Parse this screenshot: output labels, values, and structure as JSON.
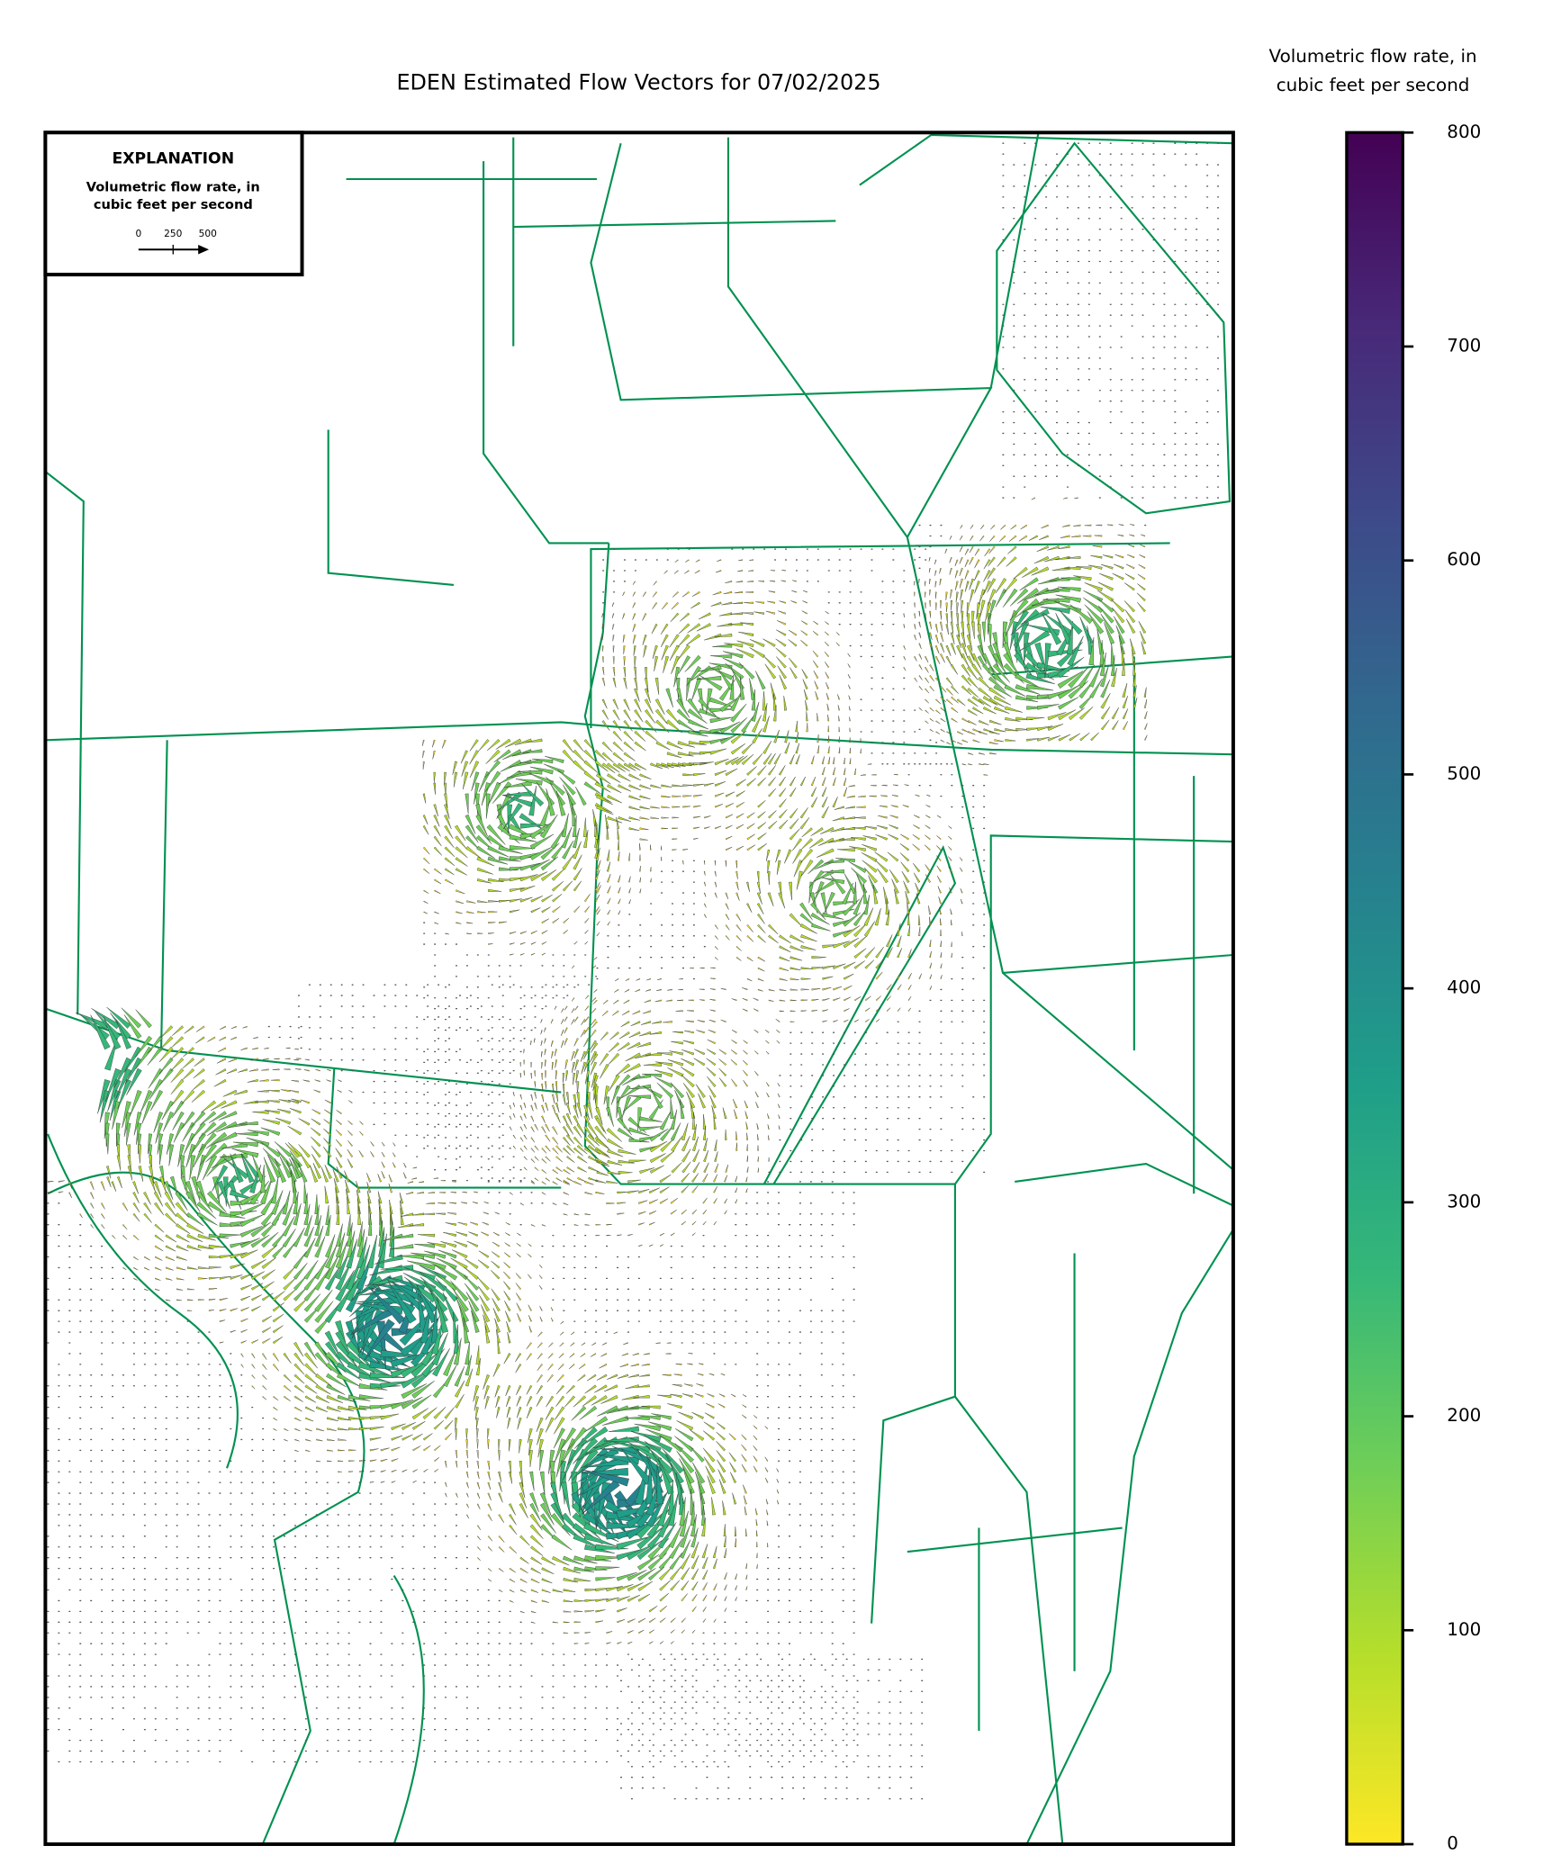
{
  "map": {
    "title": "EDEN Estimated Flow Vectors for 07/02/2025",
    "explanation": {
      "heading": "EXPLANATION",
      "text": [
        "Volumetric flow rate, in",
        "cubic feet per second"
      ],
      "scale_labels": [
        "0",
        "250",
        "500"
      ]
    },
    "colorbar": {
      "title": [
        "Volumetric flow rate, in",
        "cubic feet per second"
      ],
      "lim": [
        0,
        800
      ],
      "ticks": [
        0,
        100,
        200,
        300,
        400,
        500,
        600,
        700,
        800
      ],
      "colors": [
        "#fde725",
        "#b5de2b",
        "#6ece58",
        "#35b779",
        "#1f9e89",
        "#26828e",
        "#31688e",
        "#3e4989",
        "#482878",
        "#440154"
      ]
    },
    "line_color": "#009150"
  }
}
